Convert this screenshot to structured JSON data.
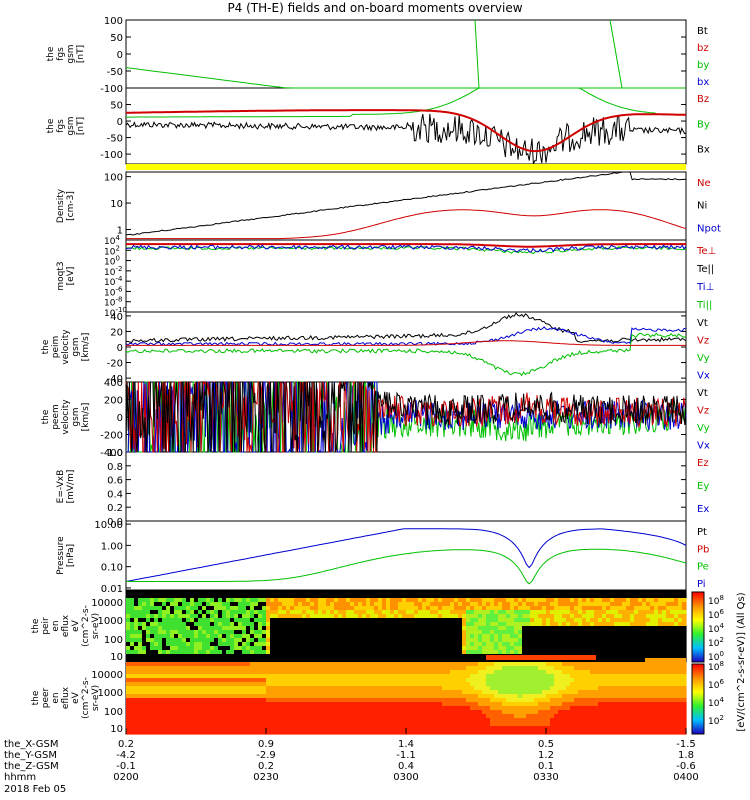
{
  "page": {
    "title": "P4 (TH-E) fields and on-board moments overview"
  },
  "chart_data": [
    {
      "type": "line",
      "ylabel": [
        "the",
        "fgs",
        "gsm",
        "[nT]"
      ],
      "yticks": [
        100,
        50,
        0,
        -50,
        -100
      ],
      "ylim": [
        -100,
        100
      ],
      "legend": [
        {
          "name": "Bt",
          "color": "#000000"
        },
        {
          "name": "bz",
          "color": "#d00000"
        },
        {
          "name": "by",
          "color": "#00c000"
        },
        {
          "name": "bx",
          "color": "#0000d0"
        }
      ]
    },
    {
      "type": "line",
      "ylabel": [
        "the",
        "fgs",
        "gsm",
        "[nT]"
      ],
      "yticks": [
        50,
        0,
        -50,
        -100
      ],
      "ylim": [
        -130,
        100
      ],
      "legend": [
        {
          "name": "Bz",
          "color": "#d00000"
        },
        {
          "name": "By",
          "color": "#00c000"
        },
        {
          "name": "Bx",
          "color": "#000000"
        }
      ]
    },
    {
      "type": "line",
      "ylabel": [
        "Density",
        "[cm-3]"
      ],
      "yticks": [
        "100",
        "10",
        "1"
      ],
      "scale": "log",
      "ylim": [
        0.4,
        150
      ],
      "legend": [
        {
          "name": "Ne",
          "color": "#d00000"
        },
        {
          "name": "Ni",
          "color": "#000000"
        },
        {
          "name": "Npot",
          "color": "#0000d0"
        }
      ]
    },
    {
      "type": "line",
      "ylabel": [
        "moqt3",
        "[eV]"
      ],
      "yticks": [
        "10^4",
        "10^2",
        "10^0",
        "10^-2",
        "10^-4",
        "10^-6",
        "10^-8",
        "10^-10"
      ],
      "scale": "log",
      "legend": [
        {
          "name": "Te⊥",
          "color": "#d00000"
        },
        {
          "name": "Te||",
          "color": "#000000"
        },
        {
          "name": "Ti⊥",
          "color": "#0000d0"
        },
        {
          "name": "Ti||",
          "color": "#00c000"
        }
      ]
    },
    {
      "type": "line",
      "ylabel": [
        "the",
        "peim",
        "velocity",
        "gsm",
        "[km/s]"
      ],
      "yticks": [
        40,
        20,
        0,
        -20,
        -40
      ],
      "ylim": [
        -45,
        45
      ],
      "legend": [
        {
          "name": "Vt",
          "color": "#000000"
        },
        {
          "name": "Vz",
          "color": "#d00000"
        },
        {
          "name": "Vy",
          "color": "#00c000"
        },
        {
          "name": "Vx",
          "color": "#0000d0"
        }
      ]
    },
    {
      "type": "line",
      "ylabel": [
        "the",
        "peem",
        "velocity",
        "gsm",
        "[km/s]"
      ],
      "yticks": [
        400,
        200,
        0,
        -200,
        -400
      ],
      "ylim": [
        -400,
        400
      ],
      "legend": [
        {
          "name": "Vt",
          "color": "#000000"
        },
        {
          "name": "Vz",
          "color": "#d00000"
        },
        {
          "name": "Vy",
          "color": "#00c000"
        },
        {
          "name": "Vx",
          "color": "#0000d0"
        }
      ]
    },
    {
      "type": "line",
      "ylabel": [
        "E=-VxB",
        "[mV/m]"
      ],
      "yticks": [
        "1.0",
        "0.8",
        "0.6",
        "0.4",
        "0.2",
        "0.0"
      ],
      "ylim": [
        0,
        1
      ],
      "legend": [
        {
          "name": "Ez",
          "color": "#d00000"
        },
        {
          "name": "Ey",
          "color": "#00c000"
        },
        {
          "name": "Ex",
          "color": "#0000d0"
        }
      ]
    },
    {
      "type": "line",
      "ylabel": [
        "Pressure",
        "[nPa]"
      ],
      "yticks": [
        "10.00",
        "1.00",
        "0.10",
        "0.01"
      ],
      "scale": "log",
      "ylim": [
        0.008,
        14
      ],
      "legend": [
        {
          "name": "Pt",
          "color": "#000000"
        },
        {
          "name": "Pb",
          "color": "#d00000"
        },
        {
          "name": "Pe",
          "color": "#00c000"
        },
        {
          "name": "Pi",
          "color": "#0000d0"
        }
      ]
    },
    {
      "type": "heatmap",
      "ylabel": [
        "the",
        "peir",
        "en",
        "eflux",
        "eV",
        "(cm^2-s-",
        "sr-eV)"
      ],
      "yticks": [
        "10000",
        "1000",
        "100",
        "10"
      ]
    },
    {
      "type": "heatmap",
      "ylabel": [
        "the",
        "peer",
        "en",
        "eflux",
        "eV",
        "(cm^2-s-",
        "sr-eV)"
      ],
      "yticks": [
        "10000",
        "1000",
        "100",
        "10"
      ]
    }
  ],
  "colorbar": {
    "label": "[eV/(cm^2-s-sr-eV)] (All Qs)",
    "ticks_top": [
      "10^8",
      "10^6",
      "10^4",
      "10^2",
      "10^0"
    ],
    "ticks_bottom": [
      "10^8",
      "10^6",
      "10^4",
      "10^2"
    ]
  },
  "x_axis": {
    "rows": [
      {
        "label": "the_X-GSM",
        "values": [
          "0.2",
          "0.9",
          "1.4",
          "0.5",
          "-1.5"
        ]
      },
      {
        "label": "the_Y-GSM",
        "values": [
          "-4.2",
          "-2.9",
          "-1.1",
          "1.2",
          "1.8"
        ]
      },
      {
        "label": "the_Z-GSM",
        "values": [
          "-0.1",
          "0.2",
          "0.4",
          "0.1",
          "-0.6"
        ]
      },
      {
        "label": "hhmm",
        "values": [
          "0200",
          "0230",
          "0300",
          "0330",
          "0400"
        ]
      }
    ],
    "date": "2018 Feb 05"
  }
}
